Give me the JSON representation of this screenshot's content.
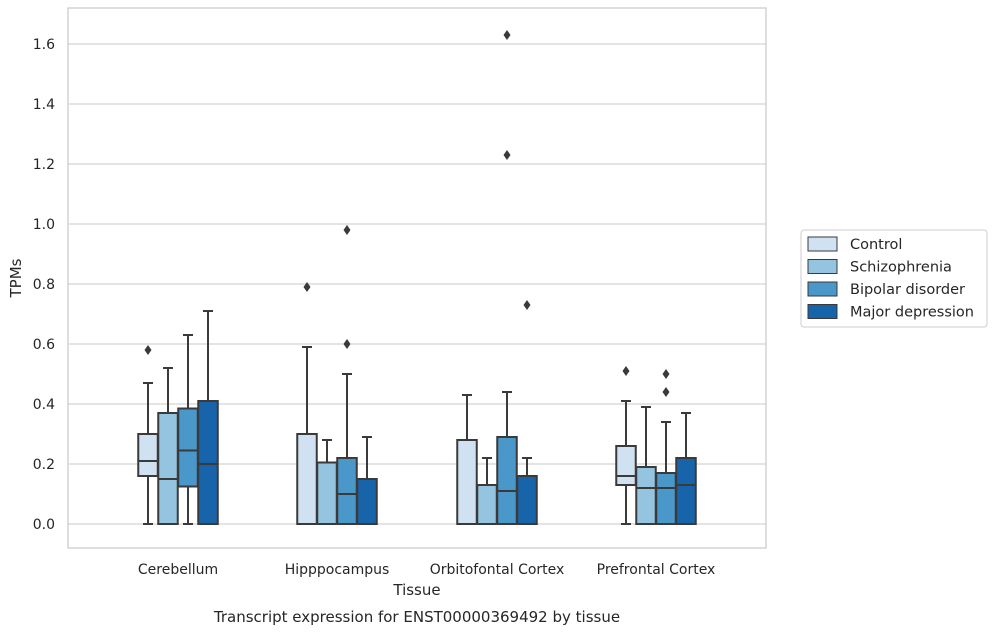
{
  "chart_data": {
    "type": "box",
    "title": "Transcript expression for ENST00000369492 by tissue",
    "xlabel": "Tissue",
    "ylabel": "TPMs",
    "ylim": [
      -0.08,
      1.72
    ],
    "yticks": [
      "0.0",
      "0.2",
      "0.4",
      "0.6",
      "0.8",
      "1.0",
      "1.2",
      "1.4",
      "1.6"
    ],
    "ytick_values": [
      0.0,
      0.2,
      0.4,
      0.6,
      0.8,
      1.0,
      1.2,
      1.4,
      1.6
    ],
    "grid": "horizontal",
    "legend_position": "right",
    "categories": [
      "Cerebellum",
      "Hipppocampus",
      "Orbitofontal Cortex",
      "Prefrontal Cortex"
    ],
    "series": [
      {
        "name": "Control",
        "color": "#d0e1f2",
        "boxes": [
          {
            "min": 0.0,
            "q1": 0.16,
            "median": 0.21,
            "q3": 0.3,
            "max": 0.47,
            "outliers": [
              0.58
            ]
          },
          {
            "min": 0.0,
            "q1": 0.0,
            "median": 0.0,
            "q3": 0.3,
            "max": 0.59,
            "outliers": [
              0.79
            ]
          },
          {
            "min": 0.0,
            "q1": 0.0,
            "median": 0.0,
            "q3": 0.28,
            "max": 0.43,
            "outliers": []
          },
          {
            "min": 0.0,
            "q1": 0.13,
            "median": 0.16,
            "q3": 0.26,
            "max": 0.41,
            "outliers": [
              0.51
            ]
          }
        ]
      },
      {
        "name": "Schizophrenia",
        "color": "#94c4df",
        "boxes": [
          {
            "min": 0.0,
            "q1": 0.0,
            "median": 0.15,
            "q3": 0.37,
            "max": 0.52,
            "outliers": []
          },
          {
            "min": 0.0,
            "q1": 0.0,
            "median": 0.0,
            "q3": 0.205,
            "max": 0.28,
            "outliers": []
          },
          {
            "min": 0.0,
            "q1": 0.0,
            "median": 0.0,
            "q3": 0.13,
            "max": 0.22,
            "outliers": []
          },
          {
            "min": 0.0,
            "q1": 0.0,
            "median": 0.12,
            "q3": 0.19,
            "max": 0.39,
            "outliers": []
          }
        ]
      },
      {
        "name": "Bipolar disorder",
        "color": "#4a98c9",
        "boxes": [
          {
            "min": 0.0,
            "q1": 0.125,
            "median": 0.245,
            "q3": 0.385,
            "max": 0.63,
            "outliers": []
          },
          {
            "min": 0.0,
            "q1": 0.0,
            "median": 0.1,
            "q3": 0.22,
            "max": 0.5,
            "outliers": [
              0.6,
              0.98
            ]
          },
          {
            "min": 0.0,
            "q1": 0.0,
            "median": 0.11,
            "q3": 0.29,
            "max": 0.44,
            "outliers": [
              1.23,
              1.63
            ]
          },
          {
            "min": 0.0,
            "q1": 0.0,
            "median": 0.12,
            "q3": 0.17,
            "max": 0.34,
            "outliers": [
              0.44,
              0.5
            ]
          }
        ]
      },
      {
        "name": "Major depression",
        "color": "#1764ab",
        "boxes": [
          {
            "min": 0.0,
            "q1": 0.0,
            "median": 0.2,
            "q3": 0.41,
            "max": 0.71,
            "outliers": []
          },
          {
            "min": 0.0,
            "q1": 0.0,
            "median": 0.0,
            "q3": 0.15,
            "max": 0.29,
            "outliers": []
          },
          {
            "min": 0.0,
            "q1": 0.0,
            "median": 0.0,
            "q3": 0.16,
            "max": 0.22,
            "outliers": [
              0.73
            ]
          },
          {
            "min": 0.0,
            "q1": 0.0,
            "median": 0.13,
            "q3": 0.22,
            "max": 0.37,
            "outliers": []
          }
        ]
      }
    ]
  }
}
